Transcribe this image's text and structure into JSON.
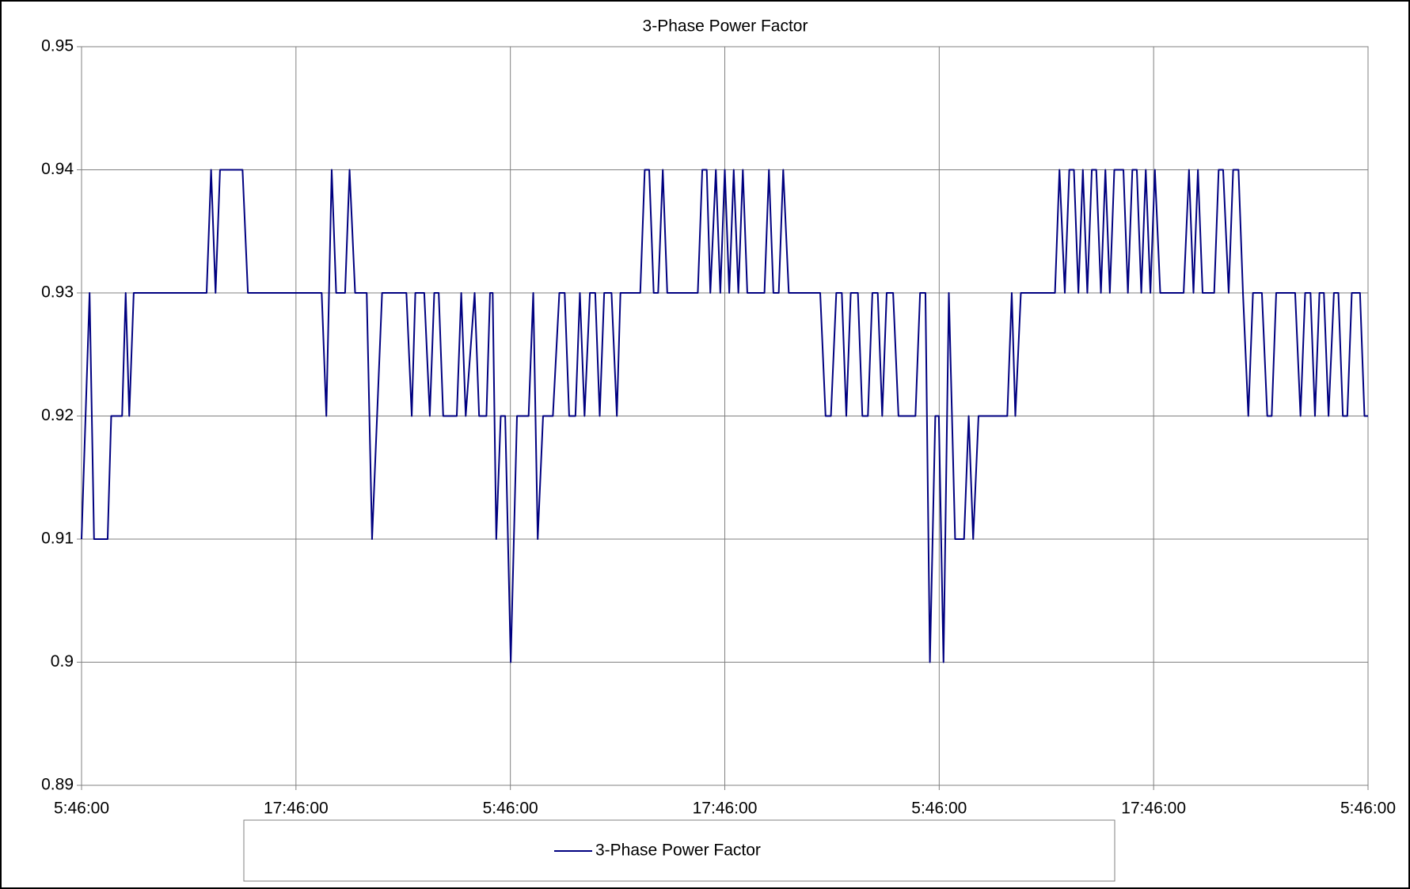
{
  "chart_data": {
    "type": "line",
    "title": "3-Phase Power Factor",
    "x": [
      0,
      0.45,
      0.7,
      1.46,
      1.66,
      2.27,
      2.47,
      2.67,
      2.92,
      7.0,
      7.25,
      7.5,
      7.75,
      9.01,
      9.31,
      13.44,
      13.7,
      14.0,
      14.25,
      14.75,
      15.0,
      15.31,
      15.96,
      16.26,
      16.82,
      18.18,
      18.48,
      18.68,
      19.18,
      19.49,
      19.74,
      19.99,
      20.24,
      21.0,
      21.25,
      21.5,
      22.0,
      22.25,
      22.66,
      22.86,
      23.01,
      23.21,
      23.46,
      23.71,
      24.02,
      24.37,
      25.02,
      25.28,
      25.53,
      25.83,
      26.38,
      26.74,
      27.04,
      27.29,
      27.64,
      27.89,
      28.15,
      28.45,
      28.75,
      29.0,
      29.25,
      29.66,
      29.96,
      30.16,
      31.27,
      31.52,
      31.77,
      32.02,
      32.27,
      32.53,
      32.78,
      34.49,
      34.74,
      34.99,
      35.19,
      35.5,
      35.75,
      36.0,
      36.25,
      36.5,
      36.76,
      37.01,
      37.26,
      38.22,
      38.47,
      38.72,
      39.02,
      39.27,
      39.58,
      41.34,
      41.64,
      41.94,
      42.24,
      42.55,
      42.8,
      43.05,
      43.45,
      43.7,
      44.01,
      44.26,
      44.56,
      44.81,
      45.06,
      45.42,
      45.72,
      46.67,
      46.93,
      47.23,
      47.48,
      47.78,
      47.98,
      48.24,
      48.54,
      48.89,
      49.39,
      49.65,
      49.9,
      50.2,
      51.81,
      52.06,
      52.26,
      52.57,
      54.48,
      54.73,
      55.03,
      55.28,
      55.54,
      55.79,
      56.04,
      56.29,
      56.54,
      56.79,
      57.05,
      57.3,
      57.55,
      57.8,
      58.31,
      58.56,
      58.81,
      59.06,
      59.31,
      59.56,
      59.82,
      60.07,
      60.37,
      61.68,
      61.98,
      62.23,
      62.48,
      62.74,
      63.39,
      63.64,
      63.89,
      64.2,
      64.45,
      64.75,
      65.0,
      65.3,
      65.56,
      66.06,
      66.36,
      66.61,
      66.86,
      67.92,
      68.22,
      68.48,
      68.78,
      69.03,
      69.28,
      69.53,
      69.79,
      70.09,
      70.34,
      70.59,
      70.84,
      71.09,
      71.55,
      71.8,
      72.0
    ],
    "series": [
      {
        "name": "3-Phase Power Factor",
        "color": "#000080",
        "values": [
          0.91,
          0.93,
          0.91,
          0.91,
          0.92,
          0.92,
          0.93,
          0.92,
          0.93,
          0.93,
          0.94,
          0.93,
          0.94,
          0.94,
          0.93,
          0.93,
          0.92,
          0.94,
          0.93,
          0.93,
          0.94,
          0.93,
          0.93,
          0.91,
          0.93,
          0.93,
          0.92,
          0.93,
          0.93,
          0.92,
          0.93,
          0.93,
          0.92,
          0.92,
          0.93,
          0.92,
          0.93,
          0.92,
          0.92,
          0.93,
          0.93,
          0.91,
          0.92,
          0.92,
          0.9,
          0.92,
          0.92,
          0.93,
          0.91,
          0.92,
          0.92,
          0.93,
          0.93,
          0.92,
          0.92,
          0.93,
          0.92,
          0.93,
          0.93,
          0.92,
          0.93,
          0.93,
          0.92,
          0.93,
          0.93,
          0.94,
          0.94,
          0.93,
          0.93,
          0.94,
          0.93,
          0.93,
          0.94,
          0.94,
          0.93,
          0.94,
          0.93,
          0.94,
          0.93,
          0.94,
          0.93,
          0.94,
          0.93,
          0.93,
          0.94,
          0.93,
          0.93,
          0.94,
          0.93,
          0.93,
          0.92,
          0.92,
          0.93,
          0.93,
          0.92,
          0.93,
          0.93,
          0.92,
          0.92,
          0.93,
          0.93,
          0.92,
          0.93,
          0.93,
          0.92,
          0.92,
          0.93,
          0.93,
          0.9,
          0.92,
          0.92,
          0.9,
          0.93,
          0.91,
          0.91,
          0.92,
          0.91,
          0.92,
          0.92,
          0.93,
          0.92,
          0.93,
          0.93,
          0.94,
          0.93,
          0.94,
          0.94,
          0.93,
          0.94,
          0.93,
          0.94,
          0.94,
          0.93,
          0.94,
          0.93,
          0.94,
          0.94,
          0.93,
          0.94,
          0.94,
          0.93,
          0.94,
          0.93,
          0.94,
          0.93,
          0.93,
          0.94,
          0.93,
          0.94,
          0.93,
          0.93,
          0.94,
          0.94,
          0.93,
          0.94,
          0.94,
          0.93,
          0.92,
          0.93,
          0.93,
          0.92,
          0.92,
          0.93,
          0.93,
          0.92,
          0.93,
          0.93,
          0.92,
          0.93,
          0.93,
          0.92,
          0.93,
          0.93,
          0.92,
          0.92,
          0.93,
          0.93,
          0.92,
          0.92
        ]
      }
    ],
    "xlim": [
      0,
      72
    ],
    "xticks": [
      {
        "value": 0,
        "label": "5:46:00"
      },
      {
        "value": 12,
        "label": "17:46:00"
      },
      {
        "value": 24,
        "label": "5:46:00"
      },
      {
        "value": 36,
        "label": "17:46:00"
      },
      {
        "value": 48,
        "label": "5:46:00"
      },
      {
        "value": 60,
        "label": "17:46:00"
      },
      {
        "value": 72,
        "label": "5:46:00"
      }
    ],
    "ylim": [
      0.89,
      0.95
    ],
    "yticks": [
      0.89,
      0.9,
      0.91,
      0.92,
      0.93,
      0.94,
      0.95
    ],
    "grid": true,
    "legend": "bottom"
  }
}
